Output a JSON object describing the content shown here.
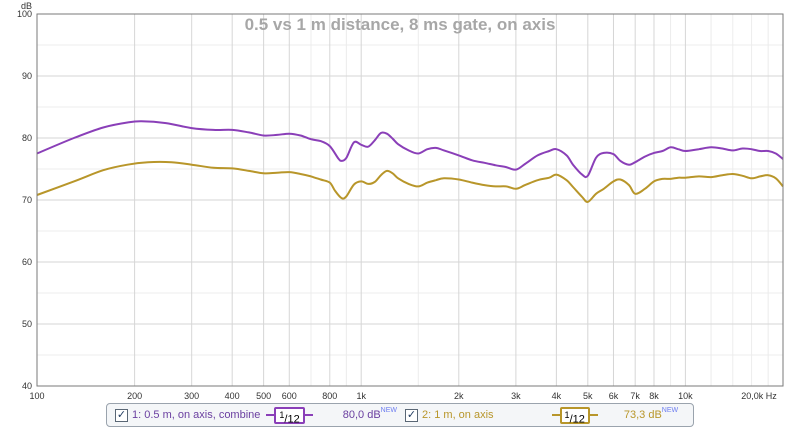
{
  "chart_data": {
    "type": "line",
    "title": "0.5 vs 1 m distance, 8 ms gate, on axis",
    "xscale": "log",
    "xlim": [
      100,
      20000
    ],
    "ylim": [
      40,
      100
    ],
    "ylabel": "dB",
    "xunit": "Hz",
    "grid": true,
    "xticks": [
      {
        "value": 100,
        "label": "100"
      },
      {
        "value": 200,
        "label": "200"
      },
      {
        "value": 300,
        "label": "300"
      },
      {
        "value": 400,
        "label": "400"
      },
      {
        "value": 500,
        "label": "500"
      },
      {
        "value": 600,
        "label": "600"
      },
      {
        "value": 800,
        "label": "800"
      },
      {
        "value": 1000,
        "label": "1k"
      },
      {
        "value": 2000,
        "label": "2k"
      },
      {
        "value": 3000,
        "label": "3k"
      },
      {
        "value": 4000,
        "label": "4k"
      },
      {
        "value": 5000,
        "label": "5k"
      },
      {
        "value": 6000,
        "label": "6k"
      },
      {
        "value": 7000,
        "label": "7k"
      },
      {
        "value": 8000,
        "label": "8k"
      },
      {
        "value": 10000,
        "label": "10k"
      },
      {
        "value": 20000,
        "label": "20,0k Hz"
      }
    ],
    "minor_x": [
      700,
      900,
      1500,
      9000,
      12000,
      14000,
      16000,
      18000
    ],
    "yticks": [
      {
        "value": 40,
        "label": "40"
      },
      {
        "value": 50,
        "label": "50"
      },
      {
        "value": 60,
        "label": "60"
      },
      {
        "value": 70,
        "label": "70"
      },
      {
        "value": 80,
        "label": "80"
      },
      {
        "value": 90,
        "label": "90"
      },
      {
        "value": 100,
        "label": "100"
      }
    ],
    "minor_y": [
      45,
      55,
      65,
      75,
      85,
      95
    ],
    "series": [
      {
        "name": "1: 0.5 m, on axis, combine",
        "color": "#8a3fb8",
        "x": [
          100,
          130,
          160,
          190,
          210,
          250,
          300,
          350,
          400,
          450,
          500,
          550,
          600,
          650,
          700,
          750,
          800,
          850,
          870,
          900,
          950,
          1000,
          1050,
          1100,
          1150,
          1200,
          1250,
          1300,
          1400,
          1500,
          1600,
          1700,
          1800,
          2000,
          2200,
          2400,
          2600,
          2800,
          3000,
          3200,
          3500,
          3800,
          4000,
          4300,
          4500,
          4800,
          5000,
          5300,
          5600,
          6000,
          6300,
          6700,
          7000,
          7500,
          8000,
          8500,
          9000,
          9500,
          10000,
          11000,
          12000,
          13000,
          14000,
          15000,
          16000,
          17000,
          18000,
          19000,
          20000
        ],
        "y": [
          77.5,
          80.0,
          81.7,
          82.5,
          82.7,
          82.4,
          81.6,
          81.3,
          81.3,
          80.9,
          80.4,
          80.5,
          80.7,
          80.4,
          79.8,
          79.5,
          78.7,
          76.7,
          76.3,
          76.8,
          79.3,
          78.9,
          78.6,
          79.6,
          80.8,
          80.7,
          79.9,
          79.0,
          78.0,
          77.5,
          78.2,
          78.4,
          78.0,
          77.2,
          76.4,
          76.0,
          75.6,
          75.3,
          74.9,
          75.8,
          77.2,
          77.9,
          78.2,
          77.2,
          75.7,
          74.1,
          73.9,
          76.8,
          77.6,
          77.4,
          76.3,
          75.7,
          76.1,
          77.0,
          77.6,
          77.9,
          78.5,
          78.2,
          77.9,
          78.2,
          78.5,
          78.3,
          78.0,
          78.3,
          78.2,
          77.9,
          77.9,
          77.5,
          76.6
        ]
      },
      {
        "name": "2: 1 m, on axis",
        "color": "#b8962a",
        "x": [
          100,
          130,
          160,
          190,
          220,
          260,
          300,
          350,
          400,
          450,
          500,
          550,
          600,
          650,
          700,
          750,
          800,
          830,
          870,
          900,
          950,
          1000,
          1050,
          1100,
          1150,
          1200,
          1250,
          1300,
          1400,
          1500,
          1600,
          1700,
          1800,
          2000,
          2200,
          2400,
          2600,
          2800,
          3000,
          3200,
          3500,
          3800,
          4000,
          4300,
          4500,
          4800,
          5000,
          5300,
          5600,
          6000,
          6300,
          6700,
          7000,
          7500,
          8000,
          8500,
          9000,
          9500,
          10000,
          11000,
          12000,
          13000,
          14000,
          15000,
          16000,
          17000,
          18000,
          19000,
          20000
        ],
        "y": [
          70.8,
          73.0,
          74.8,
          75.7,
          76.1,
          76.1,
          75.7,
          75.2,
          75.1,
          74.7,
          74.3,
          74.4,
          74.5,
          74.2,
          73.8,
          73.3,
          72.8,
          71.5,
          70.3,
          70.6,
          72.5,
          73.0,
          72.6,
          72.9,
          74.0,
          74.7,
          74.3,
          73.5,
          72.6,
          72.2,
          72.8,
          73.2,
          73.5,
          73.3,
          72.8,
          72.4,
          72.2,
          72.2,
          71.8,
          72.4,
          73.2,
          73.6,
          74.1,
          73.2,
          72.1,
          70.5,
          69.7,
          71.0,
          71.8,
          73.0,
          73.3,
          72.4,
          71.0,
          71.8,
          73.0,
          73.4,
          73.4,
          73.6,
          73.6,
          73.8,
          73.7,
          74.0,
          74.2,
          73.9,
          73.5,
          73.8,
          74.0,
          73.5,
          72.2
        ]
      }
    ]
  },
  "legend": {
    "entries": [
      {
        "label": "1: 0.5 m, on axis, combine",
        "smoothing_num": "1",
        "smoothing_den": "12",
        "level": "80,0 dB",
        "badge": "NEW",
        "color": "#8a3fb8",
        "label_color": "#6a3fa0",
        "level_color": "#6a3fa0"
      },
      {
        "label": "2: 1 m, on axis",
        "smoothing_num": "1",
        "smoothing_den": "12",
        "level": "73,3 dB",
        "badge": "NEW",
        "color": "#b8962a",
        "label_color": "#b8962a",
        "level_color": "#b8962a"
      }
    ]
  }
}
